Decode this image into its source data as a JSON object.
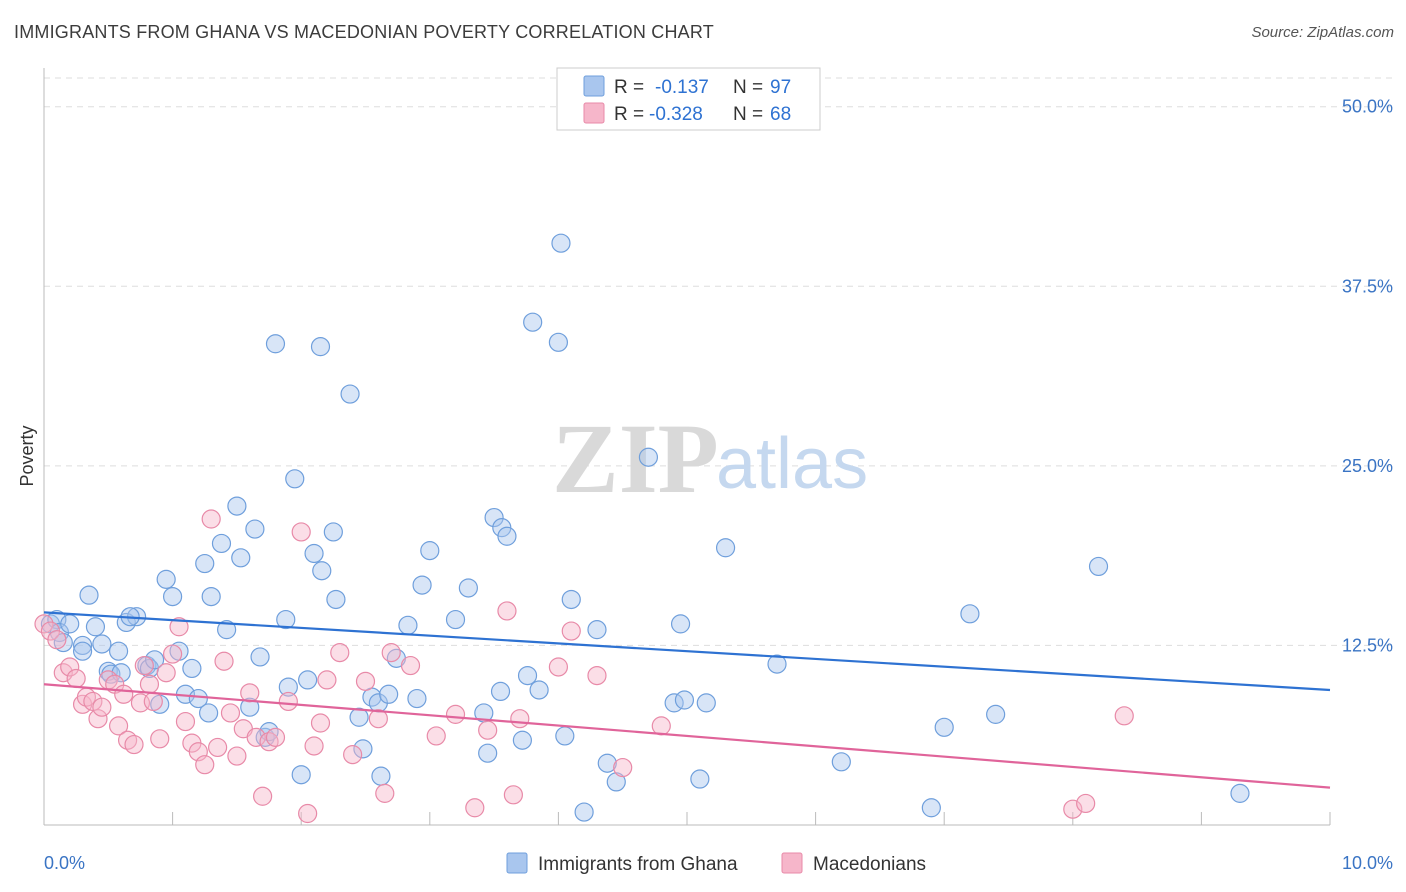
{
  "header": {
    "title": "IMMIGRANTS FROM GHANA VS MACEDONIAN POVERTY CORRELATION CHART",
    "source": "Source: ZipAtlas.com"
  },
  "watermark": {
    "zip": "ZIP",
    "atlas": "atlas"
  },
  "colors": {
    "blue_fill": "#a9c6ee",
    "blue_stroke": "#6f9fdc",
    "blue_line": "#2e72d2",
    "pink_fill": "#f6b6ca",
    "pink_stroke": "#e88aa8",
    "pink_line": "#e0649a",
    "tick": "#3a74c4",
    "grid": "#dddddd"
  },
  "legend": {
    "rows": [
      {
        "r_label": "R =",
        "r_value": "-0.137",
        "n_label": "N =",
        "n_value": "97",
        "series": "blue"
      },
      {
        "r_label": "R =",
        "r_value": "-0.328",
        "n_label": "N =",
        "n_value": "68",
        "series": "pink"
      }
    ]
  },
  "chart_data": {
    "type": "scatter",
    "title": "IMMIGRANTS FROM GHANA VS MACEDONIAN POVERTY CORRELATION CHART",
    "xlabel": "",
    "ylabel": "Poverty",
    "xlim": [
      0,
      10
    ],
    "ylim": [
      0,
      52
    ],
    "x_tick_labels": [
      "0.0%",
      "10.0%"
    ],
    "y_ticks": [
      12.5,
      25.0,
      37.5,
      50.0
    ],
    "y_tick_labels": [
      "12.5%",
      "25.0%",
      "37.5%",
      "50.0%"
    ],
    "legend_position": "top-center",
    "series": [
      {
        "name": "Immigrants from Ghana",
        "color": "blue",
        "R": -0.137,
        "N": 97,
        "trend": {
          "x": [
            0,
            10
          ],
          "y": [
            14.8,
            9.4
          ]
        },
        "points": [
          [
            0.05,
            14.0
          ],
          [
            0.1,
            14.3
          ],
          [
            0.12,
            13.4
          ],
          [
            0.2,
            14.0
          ],
          [
            0.15,
            12.7
          ],
          [
            0.3,
            12.5
          ],
          [
            0.3,
            12.1
          ],
          [
            0.35,
            16.0
          ],
          [
            0.45,
            12.6
          ],
          [
            0.58,
            12.1
          ],
          [
            0.5,
            10.7
          ],
          [
            0.52,
            10.5
          ],
          [
            0.6,
            10.6
          ],
          [
            0.64,
            14.1
          ],
          [
            0.72,
            14.5
          ],
          [
            0.67,
            14.5
          ],
          [
            0.8,
            11.1
          ],
          [
            0.82,
            10.9
          ],
          [
            0.86,
            11.5
          ],
          [
            0.9,
            8.4
          ],
          [
            0.95,
            17.1
          ],
          [
            1.0,
            15.9
          ],
          [
            1.05,
            12.1
          ],
          [
            1.1,
            9.1
          ],
          [
            1.15,
            10.9
          ],
          [
            1.2,
            8.8
          ],
          [
            1.25,
            18.2
          ],
          [
            1.28,
            7.8
          ],
          [
            1.3,
            15.9
          ],
          [
            1.38,
            19.6
          ],
          [
            1.42,
            13.6
          ],
          [
            1.5,
            22.2
          ],
          [
            1.53,
            18.6
          ],
          [
            1.6,
            8.2
          ],
          [
            1.64,
            20.6
          ],
          [
            1.68,
            11.7
          ],
          [
            1.72,
            6.1
          ],
          [
            1.75,
            6.5
          ],
          [
            1.8,
            33.5
          ],
          [
            1.88,
            14.3
          ],
          [
            1.9,
            9.6
          ],
          [
            1.95,
            24.1
          ],
          [
            2.0,
            3.5
          ],
          [
            2.05,
            10.1
          ],
          [
            2.1,
            18.9
          ],
          [
            2.15,
            33.3
          ],
          [
            2.16,
            17.7
          ],
          [
            2.25,
            20.4
          ],
          [
            2.27,
            15.7
          ],
          [
            2.38,
            30.0
          ],
          [
            2.45,
            7.5
          ],
          [
            2.48,
            5.3
          ],
          [
            2.55,
            8.9
          ],
          [
            2.6,
            8.5
          ],
          [
            2.62,
            3.4
          ],
          [
            2.68,
            9.1
          ],
          [
            2.74,
            11.6
          ],
          [
            2.83,
            13.9
          ],
          [
            2.9,
            8.8
          ],
          [
            2.94,
            16.7
          ],
          [
            3.0,
            19.1
          ],
          [
            3.2,
            14.3
          ],
          [
            3.3,
            16.5
          ],
          [
            3.42,
            7.8
          ],
          [
            3.45,
            5.0
          ],
          [
            3.5,
            21.4
          ],
          [
            3.55,
            9.3
          ],
          [
            3.56,
            20.7
          ],
          [
            3.6,
            20.1
          ],
          [
            3.72,
            5.9
          ],
          [
            3.76,
            10.4
          ],
          [
            3.8,
            35.0
          ],
          [
            3.85,
            9.4
          ],
          [
            4.0,
            33.6
          ],
          [
            4.02,
            40.5
          ],
          [
            4.05,
            6.2
          ],
          [
            4.1,
            15.7
          ],
          [
            4.2,
            0.9
          ],
          [
            4.3,
            13.6
          ],
          [
            4.38,
            4.3
          ],
          [
            4.45,
            3.0
          ],
          [
            4.7,
            25.6
          ],
          [
            4.9,
            8.5
          ],
          [
            4.95,
            14.0
          ],
          [
            4.98,
            8.7
          ],
          [
            5.1,
            3.2
          ],
          [
            5.15,
            8.5
          ],
          [
            5.3,
            19.3
          ],
          [
            5.7,
            11.2
          ],
          [
            6.2,
            4.4
          ],
          [
            6.9,
            1.2
          ],
          [
            7.0,
            6.8
          ],
          [
            7.2,
            14.7
          ],
          [
            7.4,
            7.7
          ],
          [
            8.2,
            18.0
          ],
          [
            9.3,
            2.2
          ],
          [
            0.4,
            13.8
          ]
        ]
      },
      {
        "name": "Macedonians",
        "color": "pink",
        "R": -0.328,
        "N": 68,
        "trend": {
          "x": [
            0,
            10
          ],
          "y": [
            9.8,
            2.6
          ]
        },
        "points": [
          [
            0.0,
            14.0
          ],
          [
            0.05,
            13.5
          ],
          [
            0.1,
            12.9
          ],
          [
            0.15,
            10.6
          ],
          [
            0.2,
            11.0
          ],
          [
            0.25,
            10.2
          ],
          [
            0.3,
            8.4
          ],
          [
            0.33,
            8.9
          ],
          [
            0.38,
            8.6
          ],
          [
            0.42,
            7.4
          ],
          [
            0.45,
            8.2
          ],
          [
            0.5,
            10.1
          ],
          [
            0.55,
            9.8
          ],
          [
            0.58,
            6.9
          ],
          [
            0.62,
            9.1
          ],
          [
            0.65,
            5.9
          ],
          [
            0.7,
            5.6
          ],
          [
            0.75,
            8.5
          ],
          [
            0.78,
            11.1
          ],
          [
            0.82,
            9.8
          ],
          [
            0.85,
            8.6
          ],
          [
            0.9,
            6.0
          ],
          [
            0.95,
            10.6
          ],
          [
            1.0,
            11.9
          ],
          [
            1.05,
            13.8
          ],
          [
            1.1,
            7.2
          ],
          [
            1.15,
            5.7
          ],
          [
            1.2,
            5.1
          ],
          [
            1.25,
            4.2
          ],
          [
            1.3,
            21.3
          ],
          [
            1.35,
            5.4
          ],
          [
            1.4,
            11.4
          ],
          [
            1.45,
            7.8
          ],
          [
            1.5,
            4.8
          ],
          [
            1.55,
            6.7
          ],
          [
            1.6,
            9.2
          ],
          [
            1.65,
            6.1
          ],
          [
            1.7,
            2.0
          ],
          [
            1.75,
            5.8
          ],
          [
            1.8,
            6.1
          ],
          [
            1.9,
            8.6
          ],
          [
            2.0,
            20.4
          ],
          [
            2.05,
            0.8
          ],
          [
            2.1,
            5.5
          ],
          [
            2.15,
            7.1
          ],
          [
            2.2,
            10.1
          ],
          [
            2.3,
            12.0
          ],
          [
            2.4,
            4.9
          ],
          [
            2.5,
            10.0
          ],
          [
            2.6,
            7.4
          ],
          [
            2.65,
            2.2
          ],
          [
            2.7,
            12.0
          ],
          [
            2.85,
            11.1
          ],
          [
            3.05,
            6.2
          ],
          [
            3.2,
            7.7
          ],
          [
            3.35,
            1.2
          ],
          [
            3.45,
            6.6
          ],
          [
            3.6,
            14.9
          ],
          [
            3.65,
            2.1
          ],
          [
            3.7,
            7.4
          ],
          [
            4.0,
            11.0
          ],
          [
            4.1,
            13.5
          ],
          [
            4.3,
            10.4
          ],
          [
            4.5,
            4.0
          ],
          [
            4.8,
            6.9
          ],
          [
            8.0,
            1.1
          ],
          [
            8.1,
            1.5
          ],
          [
            8.4,
            7.6
          ]
        ]
      }
    ]
  },
  "bottom_legend": {
    "items": [
      {
        "label": "Immigrants from Ghana",
        "series": "blue"
      },
      {
        "label": "Macedonians",
        "series": "pink"
      }
    ]
  }
}
